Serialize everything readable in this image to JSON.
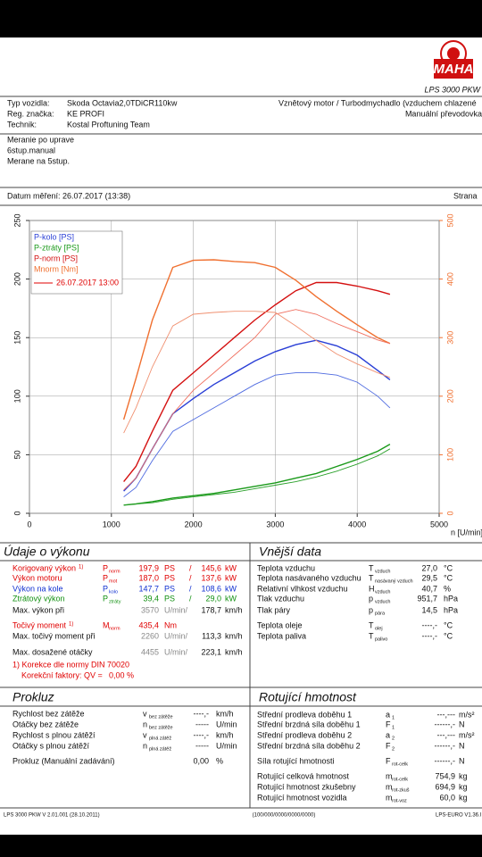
{
  "header": {
    "logo": "MAHA",
    "product": "LPS 3000 PKW"
  },
  "vehicle": {
    "rows": [
      [
        "Typ vozidla:",
        "Skoda Octavia2,0TDiCR110kw"
      ],
      [
        "Reg. značka:",
        "KE PROFI"
      ],
      [
        "Technik:",
        "Kostal Proftuning Team"
      ]
    ],
    "engine": "Vznětový motor / Turbodmychadlo (vzduchem chlazené",
    "gearbox": "Manuální převodovka"
  },
  "notes": [
    "Meranie po uprave",
    "6stup.manual",
    "Merane na 5stup."
  ],
  "date": "Datum měření: 26.07.2017 (13:38)",
  "page": "Strana",
  "chart_data": {
    "type": "line",
    "x": [
      1150,
      1300,
      1500,
      1750,
      2000,
      2250,
      2500,
      2750,
      3000,
      3250,
      3500,
      3750,
      4000,
      4250,
      4400
    ],
    "series": [
      {
        "name": "P-kolo [PS]",
        "color": "#2a3fd6",
        "width": 1.4,
        "values": [
          19,
          30,
          55,
          85,
          98,
          110,
          120,
          130,
          138,
          144,
          147.7,
          143,
          135,
          122,
          114
        ]
      },
      {
        "name": "P-ztráty [PS]",
        "color": "#1a9a1a",
        "width": 1.4,
        "values": [
          7,
          8,
          10,
          13,
          15,
          17,
          20,
          23,
          26,
          30,
          34,
          40,
          46,
          53,
          59
        ]
      },
      {
        "name": "P-norm [PS]",
        "color": "#d41010",
        "width": 1.4,
        "values": [
          27,
          40,
          70,
          105,
          120,
          135,
          150,
          165,
          178,
          190,
          197,
          197,
          194,
          190,
          187
        ]
      },
      {
        "name": "Mnorm [Nm]",
        "color": "#f07030",
        "width": 1.4,
        "axis": "y2",
        "values": [
          160,
          230,
          330,
          420,
          432,
          433,
          430,
          428,
          420,
          398,
          370,
          345,
          322,
          300,
          290
        ]
      },
      {
        "color": "#4f6be0",
        "width": 0.9,
        "values": [
          14,
          22,
          45,
          70,
          80,
          90,
          100,
          110,
          118,
          120,
          120,
          118,
          112,
          100,
          90
        ]
      },
      {
        "color": "#2aa02a",
        "width": 0.9,
        "values": [
          7,
          8,
          9,
          12,
          14,
          16,
          18,
          21,
          24,
          27,
          31,
          36,
          42,
          49,
          55
        ]
      },
      {
        "color": "#f07060",
        "width": 0.9,
        "values": [
          20,
          30,
          55,
          85,
          105,
          120,
          135,
          150,
          170,
          174,
          170,
          162,
          155,
          148,
          145
        ]
      },
      {
        "color": "#f09070",
        "width": 0.9,
        "axis": "y2",
        "values": [
          137,
          180,
          250,
          320,
          340,
          343,
          345,
          345,
          343,
          320,
          295,
          272,
          255,
          240,
          232
        ]
      }
    ],
    "legend_run": {
      "label": "26.07.2017 13:00",
      "color": "#e00000"
    },
    "xlim": [
      0,
      5000
    ],
    "xticks": [
      0,
      1000,
      2000,
      3000,
      4000,
      5000
    ],
    "ylim": [
      0,
      250
    ],
    "yticks": [
      0,
      50,
      100,
      150,
      200,
      250
    ],
    "y2lim": [
      0,
      500
    ],
    "y2ticks": [
      0,
      100,
      200,
      300,
      400,
      500
    ],
    "y2color": "#f07030",
    "xlabel": "n [U/min]",
    "grid": true,
    "legend": "upper left"
  },
  "performance": {
    "title": "Údaje o výkonu",
    "rows": [
      {
        "label": "Korigovaný výkon",
        "note": "1)",
        "color": "#e00000",
        "sym": "P",
        "sub": "norm",
        "v1": "197,9",
        "u1": "PS",
        "sep": "/",
        "v2": "145,6",
        "u2": "kW"
      },
      {
        "label": "Výkon motoru",
        "color": "#e00000",
        "sym": "P",
        "sub": "mot",
        "v1": "187,0",
        "u1": "PS",
        "sep": "/",
        "v2": "137,6",
        "u2": "kW"
      },
      {
        "label": "Výkon na kole",
        "color": "#1030d0",
        "sym": "P",
        "sub": "kolo",
        "v1": "147,7",
        "u1": "PS",
        "sep": "/",
        "v2": "108,6",
        "u2": "kW"
      },
      {
        "label": "Ztrátový výkon",
        "color": "#109010",
        "sym": "P",
        "sub": "ztráty",
        "v1": "39,4",
        "u1": "PS",
        "sep": "/",
        "v2": "29,0",
        "u2": "kW"
      },
      {
        "label": "Max. výkon při",
        "v1": "3570",
        "v1_color": "#888888",
        "u1": "U/min/",
        "v2": "178,7",
        "u2": "km/h"
      },
      {
        "label": "Točivý moment",
        "note": "1)",
        "color": "#e00000",
        "sym": "M",
        "sub": "norm",
        "v1": "435,4",
        "u1": "Nm"
      },
      {
        "label": "Max. točivý moment při",
        "v1": "2260",
        "v1_color": "#888888",
        "u1": "U/min/",
        "v2": "113,3",
        "u2": "km/h"
      },
      {
        "label": "Max. dosažené otáčky",
        "v1": "4455",
        "v1_color": "#888888",
        "u1": "U/min/",
        "v2": "223,1",
        "u2": "km/h"
      }
    ],
    "footnote": "1) Korekce dle normy DIN 70020",
    "factor": "Korekční faktory: QV =",
    "factor_value": "0,00 %"
  },
  "external": {
    "title": "Vnější data",
    "rows": [
      {
        "label": "Teplota vzduchu",
        "sym": "T",
        "sub": "vzduch",
        "v": "27,0",
        "u": "°C"
      },
      {
        "label": "Teplota nasávaného vzduchu",
        "sym": "T",
        "sub": "nasávaný vzduch",
        "v": "29,5",
        "u": "°C"
      },
      {
        "label": "Relativní vlhkost vzduchu",
        "sym": "H",
        "sub": "vzduch",
        "v": "40,7",
        "u": "%"
      },
      {
        "label": "Tlak vzduchu",
        "sym": "p",
        "sub": "vzduch",
        "v": "951,7",
        "u": "hPa"
      },
      {
        "label": "Tlak páry",
        "sym": "p",
        "sub": "pára",
        "v": "14,5",
        "u": "hPa"
      },
      {
        "label": "Teplota oleje",
        "sym": "T",
        "sub": "olej",
        "v": "----,-",
        "u": "°C"
      },
      {
        "label": "Teplota paliva",
        "sym": "T",
        "sub": "palivo",
        "v": "----,-",
        "u": "°C"
      }
    ]
  },
  "slip": {
    "title": "Prokluz",
    "rows": [
      {
        "label": "Rychlost bez zátěže",
        "sym": "v",
        "sub": "bez zátěže",
        "v": "----,-",
        "u": "km/h"
      },
      {
        "label": "Otáčky bez zátěže",
        "sym": "n",
        "sub": "bez zátěže",
        "v": "-----",
        "u": "U/min"
      },
      {
        "label": "Rychlost s plnou zátěží",
        "sym": "v",
        "sub": "plná zátěž",
        "v": "----,-",
        "u": "km/h"
      },
      {
        "label": "Otáčky s plnou zátěží",
        "sym": "n",
        "sub": "plná zátěž",
        "v": "-----",
        "u": "U/min"
      },
      {
        "label": "Prokluz (Manuální zadávání)",
        "v": "0,00",
        "u": "%"
      }
    ]
  },
  "rotating": {
    "title": "Rotující hmotnost",
    "rows": [
      {
        "label": "Střední prodleva doběhu 1",
        "sym": "a",
        "sub": "1",
        "v": "---,---",
        "u": "m/s²"
      },
      {
        "label": "Střední brzdná síla doběhu 1",
        "sym": "F",
        "sub": "1",
        "v": "------,-",
        "u": "N"
      },
      {
        "label": "Střední prodleva doběhu 2",
        "sym": "a",
        "sub": "2",
        "v": "---,---",
        "u": "m/s²"
      },
      {
        "label": "Střední brzdná síla doběhu 2",
        "sym": "F",
        "sub": "2",
        "v": "------,-",
        "u": "N"
      },
      {
        "label": "Síla rotující hmotnosti",
        "sym": "F",
        "sub": "rot-celk",
        "v": "------,-",
        "u": "N"
      },
      {
        "label": "Rotující celková hmotnost",
        "sym": "m",
        "sub": "rot-celk",
        "v": "754,9",
        "u": "kg"
      },
      {
        "label": "Rotující hmotnost zkušebny",
        "sym": "m",
        "sub": "rot-zkuš",
        "v": "694,9",
        "u": "kg"
      },
      {
        "label": "Rotující hmotnost vozidla",
        "sym": "m",
        "sub": "rot-voz",
        "v": "60,0",
        "u": "kg"
      }
    ]
  },
  "footer": {
    "left": "LPS 3000 PKW V 2.01.001 (28.10.2011)",
    "center": "(100/000/0000/0000/0000)",
    "right": "LPS-EURO V1.36.I"
  }
}
